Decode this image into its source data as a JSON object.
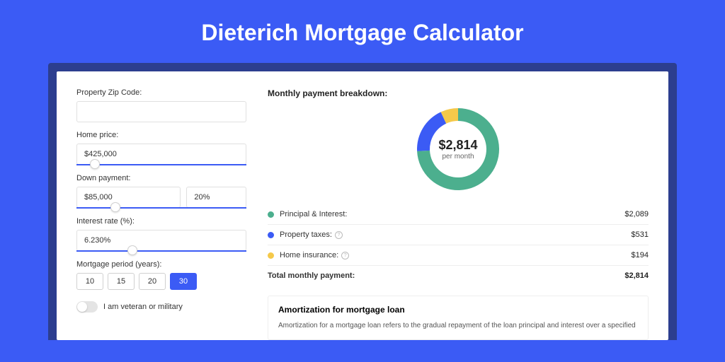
{
  "page": {
    "title": "Dieterich Mortgage Calculator",
    "bg_color": "#3b5bf5",
    "inner_bg_color": "#2c3e8f",
    "card_bg_color": "#ffffff"
  },
  "form": {
    "zip": {
      "label": "Property Zip Code:",
      "value": ""
    },
    "home_price": {
      "label": "Home price:",
      "value": "$425,000",
      "slider_pos_pct": 8
    },
    "down_payment": {
      "label": "Down payment:",
      "amount_value": "$85,000",
      "percent_value": "20%",
      "slider_pos_pct": 20
    },
    "interest": {
      "label": "Interest rate (%):",
      "value": "6.230%",
      "slider_pos_pct": 30
    },
    "period": {
      "label": "Mortgage period (years):",
      "options": [
        "10",
        "15",
        "20",
        "30"
      ],
      "active_index": 3
    },
    "veteran": {
      "label": "I am veteran or military",
      "checked": false
    }
  },
  "breakdown": {
    "title": "Monthly payment breakdown:",
    "center_amount": "$2,814",
    "center_sub": "per month",
    "donut": {
      "outer_r": 58,
      "inner_r": 40,
      "slices": [
        {
          "key": "pi",
          "color": "#4caf8e",
          "value": 2089
        },
        {
          "key": "tax",
          "color": "#3b5bf5",
          "value": 531
        },
        {
          "key": "ins",
          "color": "#f5c94a",
          "value": 194
        }
      ]
    },
    "rows": [
      {
        "dot_color": "#4caf8e",
        "label": "Principal & Interest:",
        "help": false,
        "value": "$2,089"
      },
      {
        "dot_color": "#3b5bf5",
        "label": "Property taxes:",
        "help": true,
        "value": "$531"
      },
      {
        "dot_color": "#f5c94a",
        "label": "Home insurance:",
        "help": true,
        "value": "$194"
      }
    ],
    "total": {
      "label": "Total monthly payment:",
      "value": "$2,814"
    }
  },
  "amortization": {
    "title": "Amortization for mortgage loan",
    "text": "Amortization for a mortgage loan refers to the gradual repayment of the loan principal and interest over a specified"
  }
}
